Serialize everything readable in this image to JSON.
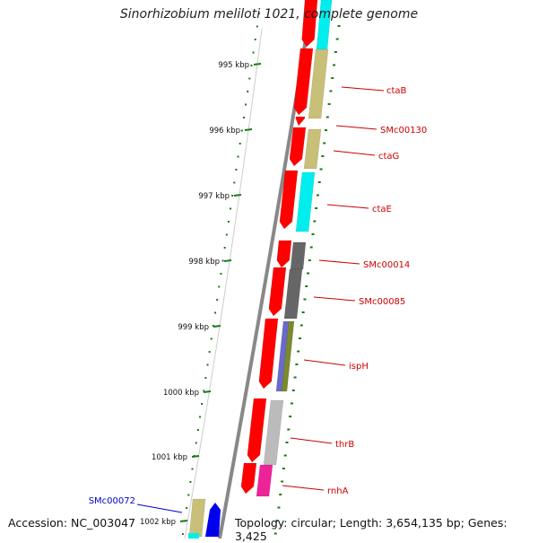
{
  "title": "Sinorhizobium meliloti 1021, complete genome",
  "accession": "Accession: NC_003047",
  "topology": "Topology: circular; Length: 3,654,135 bp; Genes: 3,425",
  "ticks": [
    {
      "label": "995 kbp"
    },
    {
      "label": "996 kbp"
    },
    {
      "label": "997 kbp"
    },
    {
      "label": "998 kbp"
    },
    {
      "label": "999 kbp"
    },
    {
      "label": "1000 kbp"
    },
    {
      "label": "1001 kbp"
    },
    {
      "label": "1002 kbp"
    }
  ],
  "genes": [
    {
      "name": "ctaB",
      "color": "#cc0000"
    },
    {
      "name": "SMc00130",
      "color": "#cc0000"
    },
    {
      "name": "ctaG",
      "color": "#cc0000"
    },
    {
      "name": "ctaE",
      "color": "#cc0000"
    },
    {
      "name": "SMc00014",
      "color": "#cc0000"
    },
    {
      "name": "SMc00085",
      "color": "#cc0000"
    },
    {
      "name": "ispH",
      "color": "#cc0000"
    },
    {
      "name": "thrB",
      "color": "#cc0000"
    },
    {
      "name": "rnhA",
      "color": "#cc0000"
    },
    {
      "name": "SMc00072",
      "color": "#0000cc"
    }
  ],
  "colors": {
    "cds": "#ff0000",
    "backbone": "#888888",
    "ticks": "#1a7a1a",
    "cyan": "#00eeee",
    "khaki": "#c8bf78",
    "darkgray": "#666666",
    "slate": "#6a6acc",
    "olive": "#7a8a2a",
    "lightgray": "#bbbbbb",
    "magenta": "#ee2299",
    "blue": "#0000ee"
  }
}
